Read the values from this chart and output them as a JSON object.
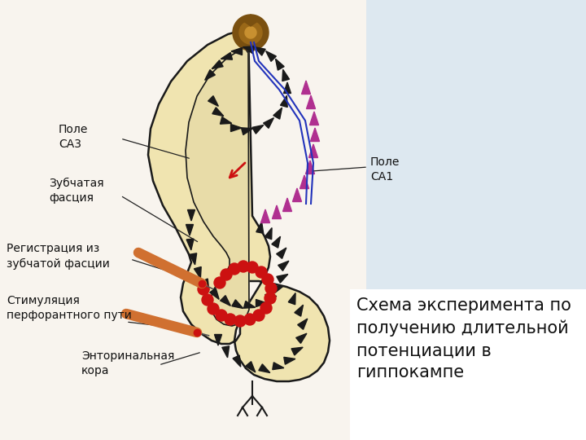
{
  "background_color": "#c5d8e8",
  "panel_color": "#ffffff",
  "hippocampus_fill": "#f0e4b0",
  "hippocampus_edge": "#1a1a1a",
  "title_text": "Схема эксперимента по\nполучению длительной\nпотенциации в\nгиппокампе",
  "label_pole_ca3": "Поле\nСА3",
  "label_pole_ca1": "Поле\nСА1",
  "label_zubchataya": "Зубчатая\nфасция",
  "label_registraciya": "Регистрация из\nзубчатой фасции",
  "label_stimulyaciya": "Стимуляция\nперфорантного пути",
  "label_entorinal": "Энторинальная\nкора",
  "dark_triangles_color": "#1a1a1a",
  "magenta_triangles_color": "#b03090",
  "red_dots_color": "#cc1111",
  "red_line_color": "#cc1111",
  "blue_line_color": "#2233bb",
  "electrode_body_color": "#d07030",
  "electrode_tip_color": "#cc1111",
  "font_size_labels": 10,
  "font_size_title": 15
}
